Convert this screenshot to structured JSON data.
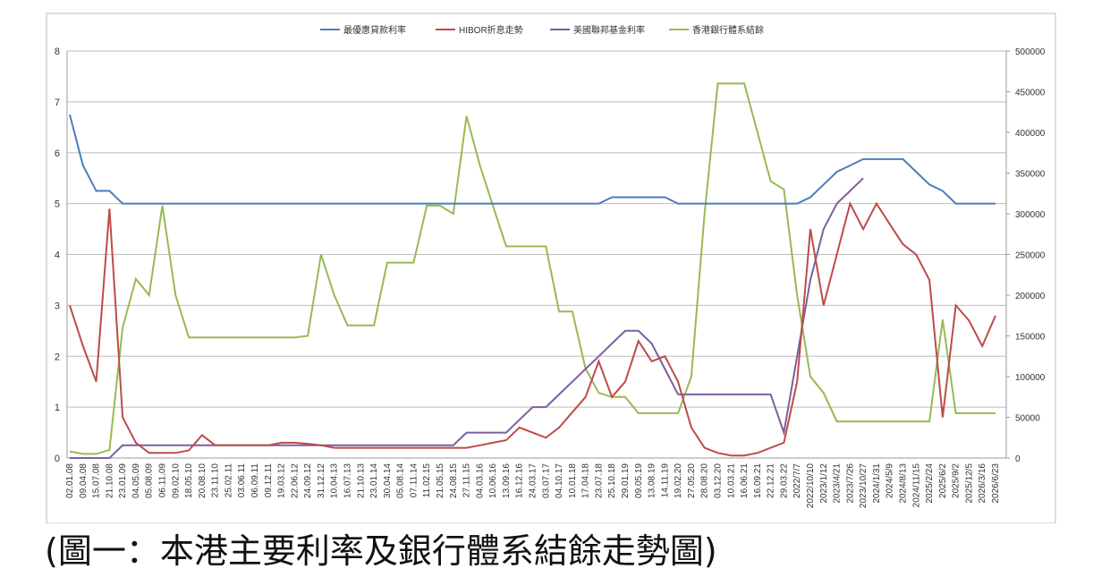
{
  "chart_data": {
    "type": "line",
    "categories": [
      "02.01.08",
      "09.04.08",
      "15.07.08",
      "21.10.08",
      "23.01.09",
      "04.05.09",
      "05.08.09",
      "06.11.09",
      "09.02.10",
      "18.05.10",
      "20.08.10",
      "23.11.10",
      "25.02.11",
      "03.06.11",
      "06.09.11",
      "09.12.11",
      "19.03.12",
      "22.06.12",
      "24.09.12",
      "31.12.12",
      "10.04.13",
      "16.07.13",
      "21.10.13",
      "23.01.14",
      "30.04.14",
      "05.08.14",
      "07.11.14",
      "11.02.15",
      "21.05.15",
      "24.08.15",
      "27.11.15",
      "04.03.16",
      "10.06.16",
      "13.09.16",
      "16.12.16",
      "24.03.17",
      "03.07.17",
      "04.10.17",
      "10.01.18",
      "17.04.18",
      "23.07.18",
      "25.10.18",
      "29.01.19",
      "09.05.19",
      "13.08.19",
      "14.11.19",
      "19.02.20",
      "27.05.20",
      "28.08.20",
      "03.12.20",
      "10.03.21",
      "16.06.21",
      "16.09.21",
      "22.12.21",
      "29.03.22",
      "2022/7/7",
      "2022/10/10",
      "2023/1/12",
      "2023/4/21",
      "2023/7/26",
      "2023/10/27",
      "2024/1/31",
      "2024/5/9",
      "2024/8/13",
      "2024/11/15",
      "2025/2/24",
      "2025/6/2",
      "2025/9/2",
      "2025/12/5",
      "2026/3/16",
      "2026/6/23"
    ],
    "series": [
      {
        "name": "最優惠貸款利率",
        "color": "#4a7ebb",
        "values": [
          6.75,
          5.75,
          5.25,
          5.25,
          5,
          5,
          5,
          5,
          5,
          5,
          5,
          5,
          5,
          5,
          5,
          5,
          5,
          5,
          5,
          5,
          5,
          5,
          5,
          5,
          5,
          5,
          5,
          5,
          5,
          5,
          5,
          5,
          5,
          5,
          5,
          5,
          5,
          5,
          5,
          5,
          5,
          5.125,
          5.125,
          5.125,
          5.125,
          5.125,
          5,
          5,
          5,
          5,
          5,
          5,
          5,
          5,
          5,
          5,
          5.125,
          5.375,
          5.625,
          5.75,
          5.875,
          5.875,
          5.875,
          5.875,
          5.625,
          5.375,
          5.25,
          5,
          5,
          5,
          5
        ]
      },
      {
        "name": "HIBOR折息走勢",
        "color": "#be4b48",
        "values": [
          3,
          2.2,
          1.5,
          4.9,
          0.8,
          0.3,
          0.1,
          0.1,
          0.1,
          0.15,
          0.45,
          0.25,
          0.25,
          0.25,
          0.25,
          0.25,
          0.3,
          0.3,
          0.28,
          0.25,
          0.2,
          0.2,
          0.2,
          0.2,
          0.2,
          0.2,
          0.2,
          0.2,
          0.2,
          0.2,
          0.2,
          0.25,
          0.3,
          0.35,
          0.6,
          0.5,
          0.4,
          0.6,
          0.9,
          1.2,
          1.9,
          1.2,
          1.5,
          2.3,
          1.9,
          2,
          1.5,
          0.6,
          0.2,
          0.1,
          0.05,
          0.05,
          0.1,
          0.2,
          0.3,
          1.5,
          4.5,
          3,
          4,
          5,
          4.5,
          5,
          4.6,
          4.2,
          4,
          3.5,
          0.8,
          3,
          2.7,
          2.2,
          2.8
        ]
      },
      {
        "name": "美國聯邦基金利率",
        "color": "#7d5fa0",
        "values": [
          0,
          0,
          0,
          0,
          0.25,
          0.25,
          0.25,
          0.25,
          0.25,
          0.25,
          0.25,
          0.25,
          0.25,
          0.25,
          0.25,
          0.25,
          0.25,
          0.25,
          0.25,
          0.25,
          0.25,
          0.25,
          0.25,
          0.25,
          0.25,
          0.25,
          0.25,
          0.25,
          0.25,
          0.25,
          0.5,
          0.5,
          0.5,
          0.5,
          0.75,
          1,
          1,
          1.25,
          1.5,
          1.75,
          2,
          2.25,
          2.5,
          2.5,
          2.25,
          1.75,
          1.25,
          1.25,
          1.25,
          1.25,
          1.25,
          1.25,
          1.25,
          1.25,
          0.5,
          2,
          3.5,
          4.5,
          5,
          5.25,
          5.5,
          null,
          null,
          null,
          null,
          null,
          null,
          null,
          null,
          null,
          null
        ]
      },
      {
        "name": "香港銀行體系結餘",
        "color": "#98b954",
        "axis": "y2",
        "values": [
          8000,
          5000,
          5000,
          10000,
          160000,
          220000,
          200000,
          310000,
          200000,
          148000,
          148000,
          148000,
          148000,
          148000,
          148000,
          148000,
          148000,
          148000,
          150000,
          250000,
          200000,
          163000,
          163000,
          163000,
          240000,
          240000,
          240000,
          310000,
          310000,
          300000,
          420000,
          360000,
          310000,
          260000,
          260000,
          260000,
          260000,
          180000,
          180000,
          110000,
          80000,
          75000,
          75000,
          55000,
          55000,
          55000,
          55000,
          100000,
          300000,
          460000,
          460000,
          460000,
          400000,
          340000,
          330000,
          200000,
          100000,
          80000,
          45000,
          45000,
          45000,
          45000,
          45000,
          45000,
          45000,
          45000,
          170000,
          55000,
          55000,
          55000,
          55000
        ]
      }
    ],
    "ylim": [
      0,
      8
    ],
    "yticks": [
      0,
      1,
      2,
      3,
      4,
      5,
      6,
      7,
      8
    ],
    "y2lim": [
      0,
      500000
    ],
    "y2ticks": [
      0,
      50000,
      100000,
      150000,
      200000,
      250000,
      300000,
      350000,
      400000,
      450000,
      500000
    ],
    "grid": true,
    "legend": "top"
  },
  "caption": "(圖一：本港主要利率及銀行體系結餘走勢圖)"
}
